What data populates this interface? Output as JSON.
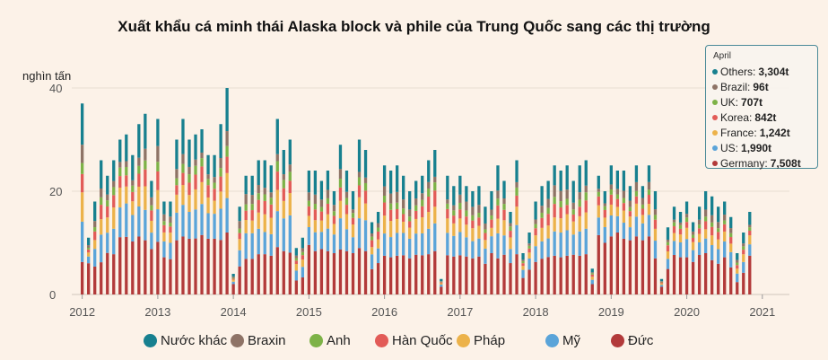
{
  "title": "Xuất khẩu cá minh thái Alaska block và phile của Trung Quốc sang các thị trường",
  "colors": {
    "background": "#fcf2e8",
    "grid": "#e8ddd2",
    "Nước khác": "#17808f",
    "Braxin": "#8e7366",
    "Anh": "#7db247",
    "Hàn Quốc": "#e25b57",
    "Pháp": "#ecb24a",
    "Mỹ": "#5aa4d9",
    "Đức": "#b23a3a"
  },
  "chart_data": {
    "type": "bar",
    "stacked": true,
    "title": "Xuất khẩu cá minh thái Alaska block và phile của Trung Quốc sang các thị trường",
    "ylabel": "nghìn tấn",
    "ylim": [
      0,
      42
    ],
    "yticks": [
      0,
      20,
      40
    ],
    "x_start": "2012-01",
    "xticks": [
      "2012",
      "2013",
      "2014",
      "2015",
      "2016",
      "2017",
      "2018",
      "2019",
      "2020",
      "2021"
    ],
    "grid": true,
    "legend_position": "bottom",
    "series_order": [
      "Đức",
      "Mỹ",
      "Pháp",
      "Hàn Quốc",
      "Anh",
      "Braxin",
      "Nước khác"
    ],
    "totals": [
      37,
      11,
      18,
      26,
      23,
      26,
      30,
      31,
      27,
      33,
      35,
      22,
      34,
      18,
      18,
      30,
      34,
      30,
      31,
      32,
      27,
      27,
      33,
      40,
      4,
      17,
      23,
      23,
      26,
      26,
      25,
      34,
      28,
      30,
      9,
      11,
      24,
      24,
      22,
      24,
      20,
      29,
      24,
      20,
      30,
      28,
      14,
      16,
      25,
      24,
      25,
      23,
      20,
      22,
      23,
      26,
      28,
      3,
      23,
      21,
      23,
      21,
      20,
      21,
      17,
      20,
      25,
      22,
      16,
      26,
      8,
      12,
      18,
      21,
      22,
      25,
      24,
      25,
      22,
      25,
      26,
      5,
      23,
      20,
      25,
      24,
      24,
      21,
      25,
      21,
      25,
      20,
      3,
      13,
      17,
      16,
      18,
      14,
      17,
      20,
      19,
      17,
      18,
      15,
      8,
      12,
      16
    ],
    "dewu_share": [
      0.17,
      0.55,
      0.3,
      0.24,
      0.35,
      0.3,
      0.37,
      0.36,
      0.38,
      0.34,
      0.3,
      0.4,
      0.3,
      0.4,
      0.38,
      0.35,
      0.33,
      0.36,
      0.35,
      0.36,
      0.4,
      0.4,
      0.32,
      0.3,
      0.5,
      0.32,
      0.3,
      0.3,
      0.3,
      0.3,
      0.3,
      0.27,
      0.3,
      0.27,
      0.3,
      0.3,
      0.4,
      0.35,
      0.4,
      0.35,
      0.4,
      0.3,
      0.35,
      0.4,
      0.3,
      0.3,
      0.35,
      0.38,
      0.3,
      0.3,
      0.3,
      0.33,
      0.35,
      0.35,
      0.33,
      0.3,
      0.3,
      0.5,
      0.33,
      0.35,
      0.33,
      0.35,
      0.35,
      0.35,
      0.35,
      0.4,
      0.28,
      0.35,
      0.38,
      0.3,
      0.4,
      0.4,
      0.35,
      0.33,
      0.33,
      0.3,
      0.3,
      0.3,
      0.35,
      0.3,
      0.3,
      0.4,
      0.5,
      0.5,
      0.45,
      0.5,
      0.45,
      0.5,
      0.45,
      0.5,
      0.45,
      0.35,
      0.5,
      0.38,
      0.45,
      0.45,
      0.4,
      0.45,
      0.45,
      0.4,
      0.35,
      0.35,
      0.4,
      0.35,
      0.3,
      0.35,
      0.47
    ]
  },
  "axis": {
    "y_unit": "nghìn tấn",
    "y_ticks": [
      "0",
      "20",
      "40"
    ],
    "x_ticks": [
      "2012",
      "2013",
      "2014",
      "2015",
      "2016",
      "2017",
      "2018",
      "2019",
      "2020",
      "2021"
    ]
  },
  "legend": [
    {
      "label": "Nước khác",
      "color": "#17808f"
    },
    {
      "label": "Braxin",
      "color": "#8e7366"
    },
    {
      "label": "Anh",
      "color": "#7db247"
    },
    {
      "label": "Hàn Quốc",
      "color": "#e25b57"
    },
    {
      "label": "Pháp",
      "color": "#ecb24a"
    },
    {
      "label": "Mỹ",
      "color": "#5aa4d9"
    },
    {
      "label": "Đức",
      "color": "#b23a3a"
    }
  ],
  "tooltip": {
    "title": "April",
    "rows": [
      {
        "label": "Others:",
        "value": "3,304t",
        "color": "#17808f"
      },
      {
        "label": "Brazil:",
        "value": "96t",
        "color": "#8e7366"
      },
      {
        "label": "UK:",
        "value": "707t",
        "color": "#7db247"
      },
      {
        "label": "Korea:",
        "value": "842t",
        "color": "#e25b57"
      },
      {
        "label": "France:",
        "value": "1,242t",
        "color": "#ecb24a"
      },
      {
        "label": "US:",
        "value": "1,990t",
        "color": "#5aa4d9"
      },
      {
        "label": "Germany:",
        "value": "7,508t",
        "color": "#b23a3a"
      }
    ]
  }
}
